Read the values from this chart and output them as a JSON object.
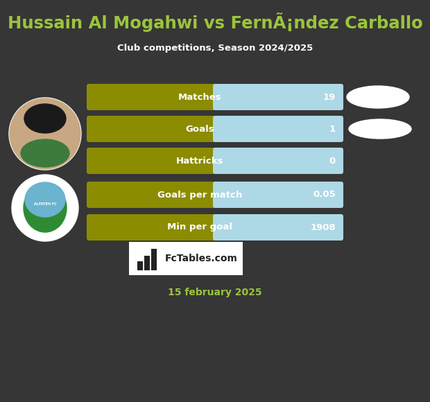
{
  "title": "Hussain Al Mogahwi vs FernÃ¡ndez Carballo",
  "subtitle": "Club competitions, Season 2024/2025",
  "date": "15 february 2025",
  "bg_color": "#363636",
  "title_color": "#9bc43d",
  "subtitle_color": "#ffffff",
  "date_color": "#9bc43d",
  "bar_left_color": "#8B8C00",
  "bar_right_color": "#add8e6",
  "bar_label_color": "#ffffff",
  "bar_value_color": "#ffffff",
  "logo_box_color": "#ffffff",
  "logo_text_color": "#222222",
  "stats": [
    {
      "label": "Matches",
      "value": "19"
    },
    {
      "label": "Goals",
      "value": "1"
    },
    {
      "label": "Hattricks",
      "value": "0"
    },
    {
      "label": "Goals per match",
      "value": "0.05"
    },
    {
      "label": "Min per goal",
      "value": "1908"
    }
  ],
  "figsize": [
    6.2,
    5.8
  ],
  "dpi": 100
}
